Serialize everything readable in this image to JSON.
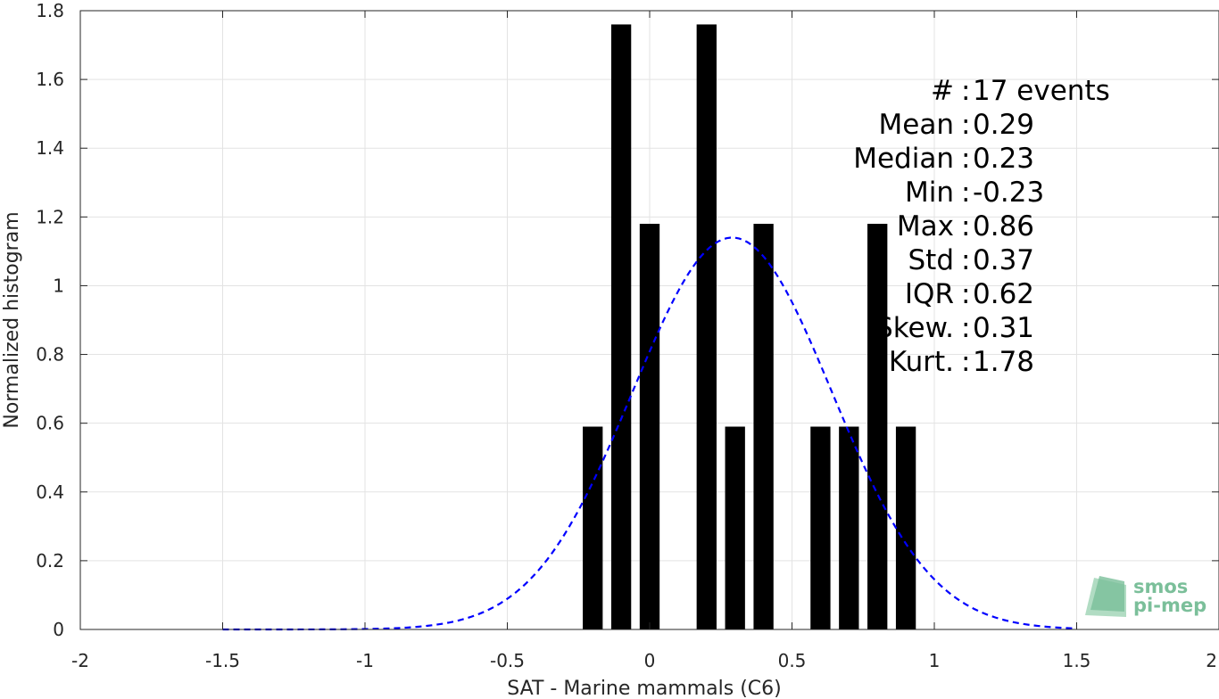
{
  "chart_data": {
    "type": "bar",
    "title": "",
    "xlabel": "SAT - Marine mammals (C6)",
    "ylabel": "Normalized histogram",
    "xlim": [
      -2,
      2
    ],
    "ylim": [
      0,
      1.8
    ],
    "grid": true,
    "xticks": [
      -2,
      -1.5,
      -1,
      -0.5,
      0,
      0.5,
      1,
      1.5,
      2
    ],
    "yticks": [
      0,
      0.2,
      0.4,
      0.6,
      0.8,
      1,
      1.2,
      1.4,
      1.6,
      1.8
    ],
    "xtick_labels": [
      "-2",
      "-1.5",
      "-1",
      "-0.5",
      "0",
      "0.5",
      "1",
      "1.5",
      "2"
    ],
    "ytick_labels": [
      "0",
      "0.2",
      "0.4",
      "0.6",
      "0.8",
      "1",
      "1.2",
      "1.4",
      "1.6",
      "1.8"
    ],
    "bar_width": 0.07,
    "bars": {
      "x": [
        -0.2,
        -0.1,
        0.0,
        0.2,
        0.3,
        0.4,
        0.6,
        0.7,
        0.8,
        0.9
      ],
      "values": [
        0.59,
        1.76,
        1.18,
        1.76,
        0.59,
        1.18,
        0.59,
        0.59,
        1.18,
        0.59
      ],
      "color": "#000000"
    },
    "fit_curve": {
      "style": "dashed",
      "color": "#0000ff",
      "mean": 0.29,
      "std": 0.35,
      "peak": 1.14,
      "x_range": [
        -1.5,
        1.5
      ]
    },
    "stats": [
      {
        "label": "#  ",
        "value": "17 events"
      },
      {
        "label": "Mean",
        "value": "0.29"
      },
      {
        "label": "Median",
        "value": "0.23"
      },
      {
        "label": "Min",
        "value": "-0.23"
      },
      {
        "label": "Max",
        "value": "0.86"
      },
      {
        "label": "Std",
        "value": "0.37"
      },
      {
        "label": "IQR",
        "value": "0.62"
      },
      {
        "label": "Skew.",
        "value": "0.31"
      },
      {
        "label": "Kurt.",
        "value": "1.78"
      }
    ]
  },
  "logo": {
    "line1": "smos",
    "line2": "pi-mep",
    "color": "#7bbf9a"
  }
}
